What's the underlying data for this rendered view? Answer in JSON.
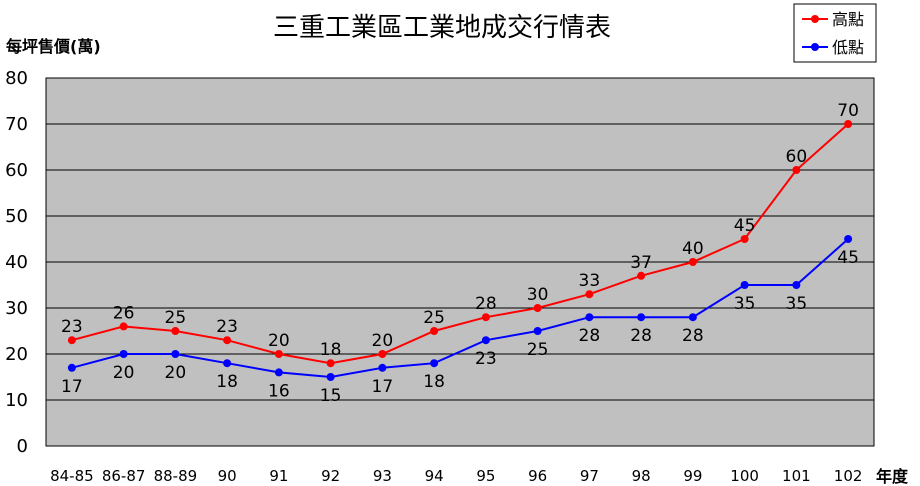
{
  "chart_data": {
    "type": "line",
    "title": "三重工業區工業地成交行情表",
    "ylabel": "每坪售價(萬)",
    "xlabel": "年度",
    "categories": [
      "84-85",
      "86-87",
      "88-89",
      "90",
      "91",
      "92",
      "93",
      "94",
      "95",
      "96",
      "97",
      "98",
      "99",
      "100",
      "101",
      "102"
    ],
    "ylim": [
      0,
      80
    ],
    "yticks": [
      0,
      10,
      20,
      30,
      40,
      50,
      60,
      70,
      80
    ],
    "grid": true,
    "legend_position": "top-right",
    "series": [
      {
        "name": "高點",
        "color": "#ff0000",
        "values": [
          23,
          26,
          25,
          23,
          20,
          18,
          20,
          25,
          28,
          30,
          33,
          37,
          40,
          45,
          60,
          70
        ]
      },
      {
        "name": "低點",
        "color": "#0000ff",
        "values": [
          17,
          20,
          20,
          18,
          16,
          15,
          17,
          18,
          23,
          25,
          28,
          28,
          28,
          35,
          35,
          45
        ]
      }
    ]
  },
  "style": {
    "plot_bg": "#c0c0c0",
    "grid_color": "#000000"
  }
}
